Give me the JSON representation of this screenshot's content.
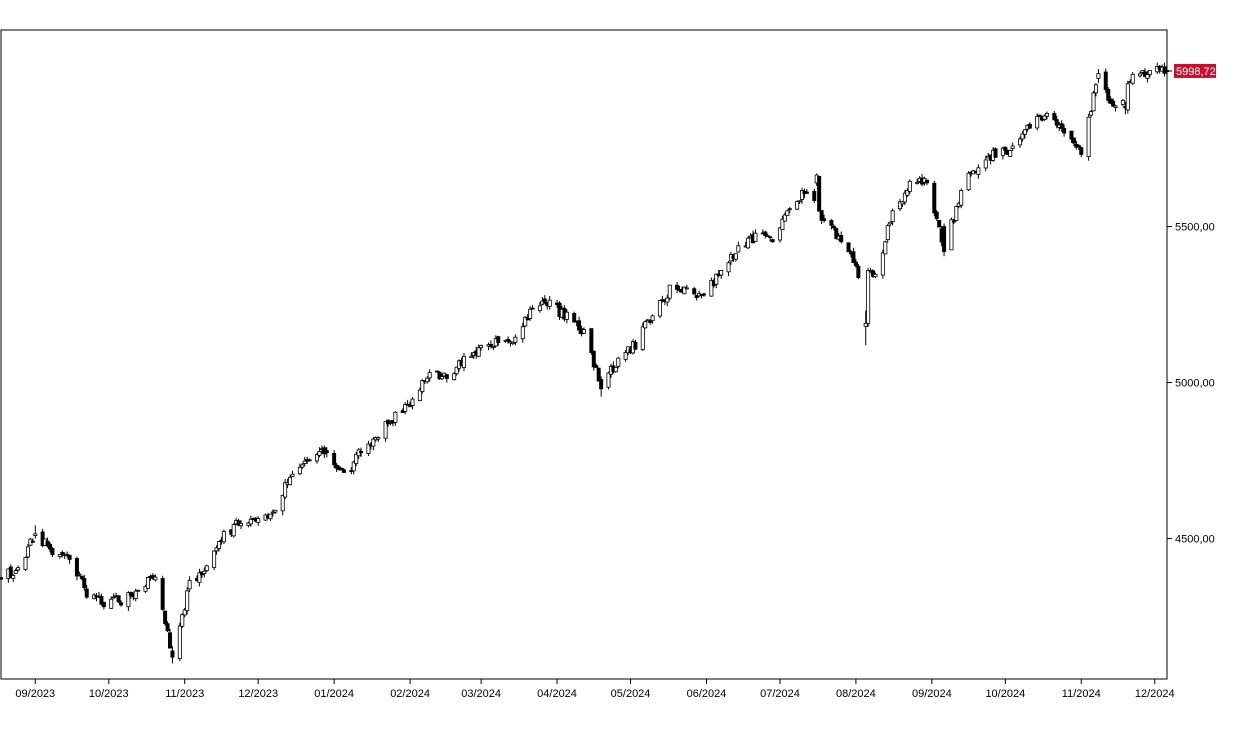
{
  "chart_data": {
    "type": "candlestick",
    "title": "",
    "xlabel": "",
    "ylabel": "",
    "x_range": [
      "2023-08-18",
      "2024-12-06"
    ],
    "ylim": [
      4050,
      6130
    ],
    "grid": false,
    "legend": "none",
    "y_ticks": [
      {
        "value": 4500,
        "label": "4500,00"
      },
      {
        "value": 5000,
        "label": "5000,00"
      },
      {
        "value": 5500,
        "label": "5500,00"
      }
    ],
    "x_ticks": [
      {
        "date": "2023-09-01",
        "label": "09/2023"
      },
      {
        "date": "2023-10-01",
        "label": "10/2023"
      },
      {
        "date": "2023-11-01",
        "label": "11/2023"
      },
      {
        "date": "2023-12-01",
        "label": "12/2023"
      },
      {
        "date": "2024-01-01",
        "label": "01/2024"
      },
      {
        "date": "2024-02-01",
        "label": "02/2024"
      },
      {
        "date": "2024-03-01",
        "label": "03/2024"
      },
      {
        "date": "2024-04-01",
        "label": "04/2024"
      },
      {
        "date": "2024-05-01",
        "label": "05/2024"
      },
      {
        "date": "2024-06-01",
        "label": "06/2024"
      },
      {
        "date": "2024-07-01",
        "label": "07/2024"
      },
      {
        "date": "2024-08-01",
        "label": "08/2024"
      },
      {
        "date": "2024-09-01",
        "label": "09/2024"
      },
      {
        "date": "2024-10-01",
        "label": "10/2024"
      },
      {
        "date": "2024-11-01",
        "label": "11/2024"
      },
      {
        "date": "2024-12-01",
        "label": "12/2024"
      }
    ],
    "last_value": {
      "value": 5998.72,
      "label": "5998,72",
      "color": "#c8102e"
    },
    "close_path": [
      [
        "2023-08-18",
        4370
      ],
      [
        "2023-08-25",
        4405
      ],
      [
        "2023-09-01",
        4515
      ],
      [
        "2023-09-08",
        4455
      ],
      [
        "2023-09-15",
        4450
      ],
      [
        "2023-09-22",
        4320
      ],
      [
        "2023-09-29",
        4290
      ],
      [
        "2023-10-06",
        4305
      ],
      [
        "2023-10-13",
        4330
      ],
      [
        "2023-10-20",
        4380
      ],
      [
        "2023-10-27",
        4120
      ],
      [
        "2023-11-03",
        4355
      ],
      [
        "2023-11-10",
        4410
      ],
      [
        "2023-11-17",
        4510
      ],
      [
        "2023-11-24",
        4555
      ],
      [
        "2023-12-01",
        4575
      ],
      [
        "2023-12-08",
        4590
      ],
      [
        "2023-12-15",
        4720
      ],
      [
        "2023-12-22",
        4760
      ],
      [
        "2023-12-29",
        4775
      ],
      [
        "2024-01-05",
        4700
      ],
      [
        "2024-01-12",
        4780
      ],
      [
        "2024-01-19",
        4840
      ],
      [
        "2024-01-26",
        4890
      ],
      [
        "2024-02-02",
        4950
      ],
      [
        "2024-02-09",
        5030
      ],
      [
        "2024-02-16",
        5020
      ],
      [
        "2024-02-23",
        5070
      ],
      [
        "2024-03-01",
        5110
      ],
      [
        "2024-03-08",
        5130
      ],
      [
        "2024-03-15",
        5140
      ],
      [
        "2024-03-22",
        5240
      ],
      [
        "2024-03-29",
        5250
      ],
      [
        "2024-04-05",
        5210
      ],
      [
        "2024-04-12",
        5160
      ],
      [
        "2024-04-19",
        4980
      ],
      [
        "2024-04-26",
        5080
      ],
      [
        "2024-05-03",
        5120
      ],
      [
        "2024-05-10",
        5220
      ],
      [
        "2024-05-17",
        5300
      ],
      [
        "2024-05-24",
        5300
      ],
      [
        "2024-05-31",
        5280
      ],
      [
        "2024-06-07",
        5350
      ],
      [
        "2024-06-14",
        5430
      ],
      [
        "2024-06-21",
        5470
      ],
      [
        "2024-06-28",
        5460
      ],
      [
        "2024-07-05",
        5560
      ],
      [
        "2024-07-12",
        5620
      ],
      [
        "2024-07-19",
        5510
      ],
      [
        "2024-07-26",
        5460
      ],
      [
        "2024-08-02",
        5350
      ],
      [
        "2024-08-09",
        5340
      ],
      [
        "2024-08-16",
        5550
      ],
      [
        "2024-08-23",
        5630
      ],
      [
        "2024-08-30",
        5650
      ],
      [
        "2024-09-06",
        5420
      ],
      [
        "2024-09-13",
        5620
      ],
      [
        "2024-09-20",
        5700
      ],
      [
        "2024-09-27",
        5740
      ],
      [
        "2024-10-04",
        5750
      ],
      [
        "2024-10-11",
        5820
      ],
      [
        "2024-10-18",
        5860
      ],
      [
        "2024-10-25",
        5800
      ],
      [
        "2024-11-01",
        5730
      ],
      [
        "2024-11-08",
        5990
      ],
      [
        "2024-11-15",
        5870
      ],
      [
        "2024-11-22",
        5970
      ],
      [
        "2024-11-29",
        6000
      ],
      [
        "2024-12-06",
        5998.72
      ]
    ],
    "series": [
      {
        "date": "2023-08-18",
        "open": 4375,
        "high": 4392,
        "low": 4355,
        "close": 4370
      },
      {
        "date": "2023-09-01",
        "open": 4510,
        "high": 4542,
        "low": 4500,
        "close": 4515
      },
      {
        "date": "2023-10-27",
        "open": 4140,
        "high": 4155,
        "low": 4100,
        "close": 4120
      },
      {
        "date": "2023-12-29",
        "open": 4782,
        "high": 4793,
        "low": 4760,
        "close": 4775
      },
      {
        "date": "2024-04-01",
        "open": 5255,
        "high": 5265,
        "low": 5240,
        "close": 5250
      },
      {
        "date": "2024-04-19",
        "open": 5010,
        "high": 5020,
        "low": 4955,
        "close": 4980
      },
      {
        "date": "2024-07-16",
        "open": 5640,
        "high": 5670,
        "low": 5630,
        "close": 5665
      },
      {
        "date": "2024-08-05",
        "open": 5180,
        "high": 5230,
        "low": 5120,
        "close": 5190
      },
      {
        "date": "2024-09-06",
        "open": 5500,
        "high": 5510,
        "low": 5405,
        "close": 5420
      },
      {
        "date": "2024-11-08",
        "open": 5975,
        "high": 6005,
        "low": 5960,
        "close": 5990
      },
      {
        "date": "2024-11-19",
        "open": 5885,
        "high": 5900,
        "low": 5860,
        "close": 5880
      },
      {
        "date": "2024-12-06",
        "open": 6000,
        "high": 6025,
        "low": 5990,
        "close": 5998.72
      }
    ]
  }
}
